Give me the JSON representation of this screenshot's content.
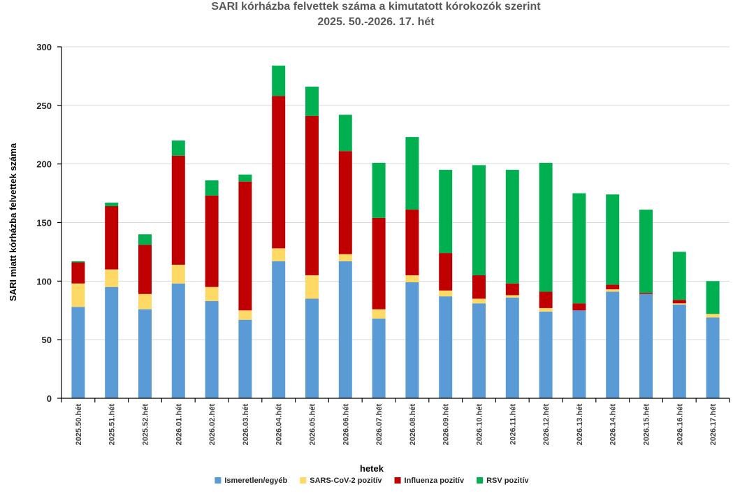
{
  "chart_data": {
    "type": "bar",
    "stacked": true,
    "title": "SARI kórházba felvettek száma a kimutatott kórokozók szerint",
    "subtitle": "2025. 50.-2026. 17. hét",
    "xlabel": "hetek",
    "ylabel": "SARI miatt kórházba felvettek száma",
    "ylim": [
      0,
      300
    ],
    "yticks": [
      0,
      50,
      100,
      150,
      200,
      250,
      300
    ],
    "grid": true,
    "legend_position": "bottom",
    "categories": [
      "2025.50.hét",
      "2025.51.hét",
      "2025.52.hét",
      "2026.01.hét",
      "2026.02.hét",
      "2026.03.hét",
      "2026.04.hét",
      "2026.05.hét",
      "2026.06.hét",
      "2026.07.hét",
      "2026.08.hét",
      "2026.09.hét",
      "2026.10.hét",
      "2026.11.hét",
      "2026.12.hét",
      "2026.13.hét",
      "2026.14.hét",
      "2026.15.hét",
      "2026.16.hét",
      "2026.17.hét"
    ],
    "series": [
      {
        "name": "Ismeretlen/egyéb",
        "color": "#5b9bd5",
        "values": [
          78,
          95,
          76,
          98,
          83,
          67,
          117,
          85,
          117,
          68,
          99,
          87,
          81,
          86,
          74,
          75,
          91,
          89,
          80,
          69
        ]
      },
      {
        "name": "SARS-CoV-2 pozitív",
        "color": "#ffd966",
        "values": [
          20,
          15,
          13,
          16,
          12,
          8,
          11,
          20,
          6,
          8,
          6,
          5,
          4,
          2,
          3,
          0,
          2,
          0,
          1,
          3
        ]
      },
      {
        "name": "Influenza pozitív",
        "color": "#c00000",
        "values": [
          18,
          54,
          42,
          93,
          78,
          110,
          130,
          136,
          88,
          78,
          56,
          32,
          20,
          10,
          14,
          6,
          4,
          1,
          3,
          0
        ]
      },
      {
        "name": "RSV pozitív",
        "color": "#00b050",
        "values": [
          1,
          3,
          9,
          13,
          13,
          6,
          26,
          25,
          31,
          47,
          62,
          71,
          94,
          97,
          110,
          94,
          77,
          71,
          41,
          28
        ]
      }
    ]
  }
}
